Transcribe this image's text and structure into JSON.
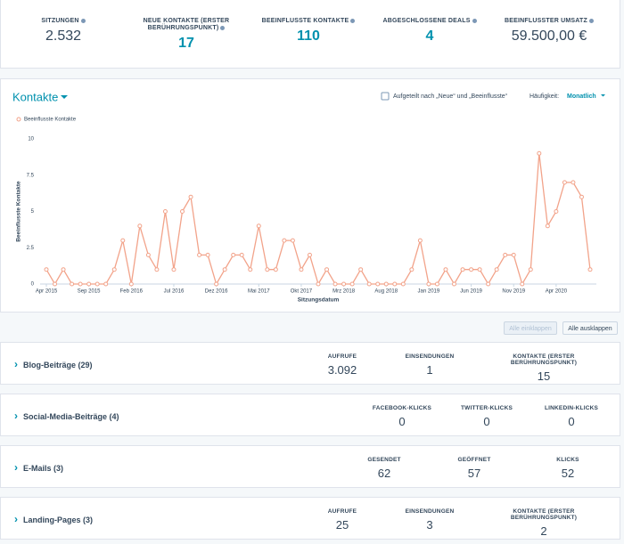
{
  "kpis": [
    {
      "label": "SITZUNGEN",
      "value": "2.532"
    },
    {
      "label": "NEUE KONTAKTE (ERSTER BERÜHRUNGSPUNKT)",
      "value": "17"
    },
    {
      "label": "BEEINFLUSSTE KONTAKTE",
      "value": "110"
    },
    {
      "label": "ABGESCHLOSSENE DEALS",
      "value": "4"
    },
    {
      "label": "BEEINFLUSSTER UMSATZ",
      "value": "59.500,00 €"
    }
  ],
  "panel": {
    "title": "Kontakte",
    "checkbox_label": "Aufgeteilt nach „Neue“ und „Beeinflusste“",
    "frequency_label": "Häufigkeit:",
    "frequency_value": "Monatlich"
  },
  "chart_data": {
    "type": "line",
    "x_label": "Sitzungsdatum",
    "y_label": "Beeinflusste Kontakte",
    "categories": [
      "Apr 2015",
      null,
      null,
      null,
      null,
      "Sep 2015",
      null,
      null,
      null,
      null,
      "Feb 2016",
      null,
      null,
      null,
      null,
      "Jul 2016",
      null,
      null,
      null,
      null,
      "Dez 2016",
      null,
      null,
      null,
      null,
      "Mai 2017",
      null,
      null,
      null,
      null,
      "Okt 2017",
      null,
      null,
      null,
      null,
      "Mrz 2018",
      null,
      null,
      null,
      null,
      "Aug 2018",
      null,
      null,
      null,
      null,
      "Jan 2019",
      null,
      null,
      null,
      null,
      "Jun 2019",
      null,
      null,
      null,
      null,
      "Nov 2019",
      null,
      null,
      null,
      null,
      "Apr 2020",
      null,
      null,
      null,
      null
    ],
    "series": [
      {
        "name": "Beeinflusste Kontakte",
        "color": "#f2a38a",
        "values": [
          1,
          0,
          1,
          0,
          0,
          0,
          0,
          0,
          1,
          3,
          0,
          4,
          2,
          1,
          5,
          1,
          5,
          6,
          2,
          2,
          0,
          1,
          2,
          2,
          1,
          4,
          1,
          1,
          3,
          3,
          1,
          2,
          0,
          1,
          0,
          0,
          0,
          1,
          0,
          0,
          0,
          0,
          0,
          1,
          3,
          0,
          0,
          1,
          0,
          1,
          1,
          1,
          0,
          1,
          2,
          2,
          0,
          1,
          9,
          4,
          5,
          7,
          7,
          6,
          1
        ]
      }
    ],
    "ylim": [
      0,
      10
    ],
    "yticks": [
      0,
      2.5,
      5,
      7.5,
      10
    ],
    "grid": false,
    "legend": "top-left"
  },
  "buttons": [
    "Alle einklappen",
    "Alle ausklappen"
  ],
  "sections": [
    {
      "title": "Blog-Beiträge (29)",
      "metrics": [
        {
          "label": "AUFRUFE",
          "value": "3.092"
        },
        {
          "label": "EINSENDUNGEN",
          "value": "1"
        },
        {
          "label": "KONTAKTE (ERSTER BERÜHRUNGSPUNKT)",
          "value": "15"
        }
      ]
    },
    {
      "title": "Social-Media-Beiträge (4)",
      "metrics": [
        {
          "label": "FACEBOOK-KLICKS",
          "value": "0"
        },
        {
          "label": "TWITTER-KLICKS",
          "value": "0"
        },
        {
          "label": "LINKEDIN-KLICKS",
          "value": "0"
        }
      ]
    },
    {
      "title": "E-Mails (3)",
      "metrics": [
        {
          "label": "GESENDET",
          "value": "62"
        },
        {
          "label": "GEÖFFNET",
          "value": "57"
        },
        {
          "label": "KLICKS",
          "value": "52"
        }
      ]
    },
    {
      "title": "Landing-Pages (3)",
      "metrics": [
        {
          "label": "AUFRUFE",
          "value": "25"
        },
        {
          "label": "EINSENDUNGEN",
          "value": "3"
        },
        {
          "label": "KONTAKTE (ERSTER BERÜHRUNGSPUNKT)",
          "value": "2"
        }
      ]
    }
  ]
}
